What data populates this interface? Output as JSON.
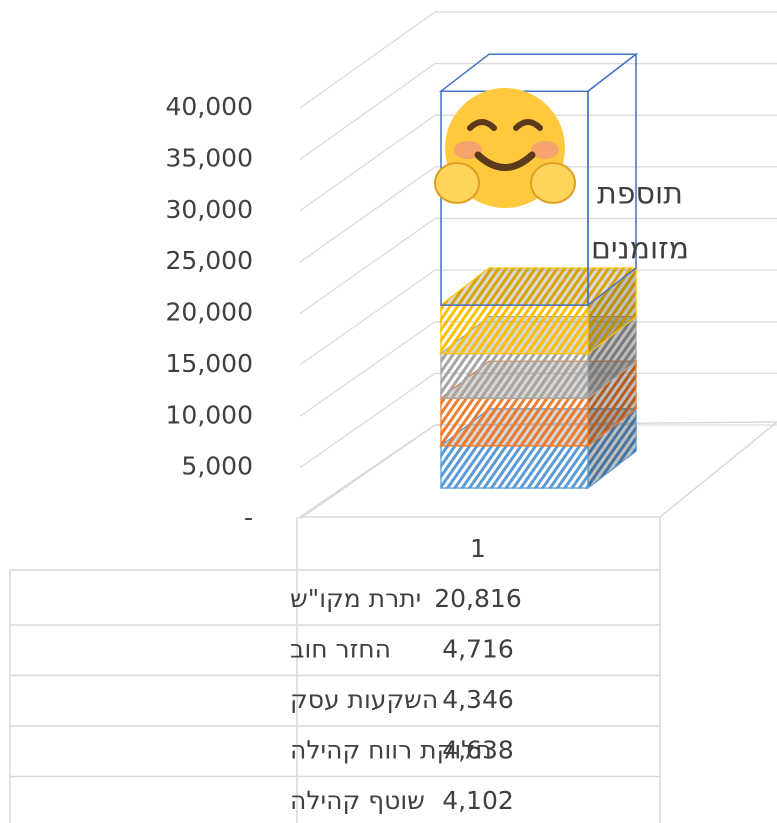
{
  "chart_data": {
    "type": "bar3d_stacked",
    "categories": [
      "1"
    ],
    "series": [
      {
        "name": "יתרת מקו\"ש",
        "color": "#4472c4",
        "fill": "none",
        "values": [
          20816
        ],
        "value_labels": [
          "20,816"
        ]
      },
      {
        "name": "החזר חוב",
        "color": "#ffc000",
        "values": [
          4716
        ],
        "value_labels": [
          "4,716"
        ]
      },
      {
        "name": "השקעות עסק",
        "color": "#a5a5a5",
        "values": [
          4346
        ],
        "value_labels": [
          "4,346"
        ]
      },
      {
        "name": "חלוקת רווח קהילה",
        "color": "#ed7d31",
        "values": [
          4638
        ],
        "value_labels": [
          "4,638"
        ]
      },
      {
        "name": "שוטף קהילה",
        "color": "#5b9bd5",
        "values": [
          4102
        ],
        "value_labels": [
          "4,102"
        ]
      }
    ],
    "stack_order": "bottom_is_last",
    "annotations": [
      "תוספת",
      "מזומנים"
    ],
    "ylim": [
      0,
      40000
    ],
    "yticks": [
      {
        "value": 0,
        "label": "-"
      },
      {
        "value": 5000,
        "label": "5,000"
      },
      {
        "value": 10000,
        "label": "10,000"
      },
      {
        "value": 15000,
        "label": "15,000"
      },
      {
        "value": 20000,
        "label": "20,000"
      },
      {
        "value": 25000,
        "label": "25,000"
      },
      {
        "value": 30000,
        "label": "30,000"
      },
      {
        "value": 35000,
        "label": "35,000"
      },
      {
        "value": 40000,
        "label": "40,000"
      }
    ],
    "grid": true,
    "data_table": true
  }
}
